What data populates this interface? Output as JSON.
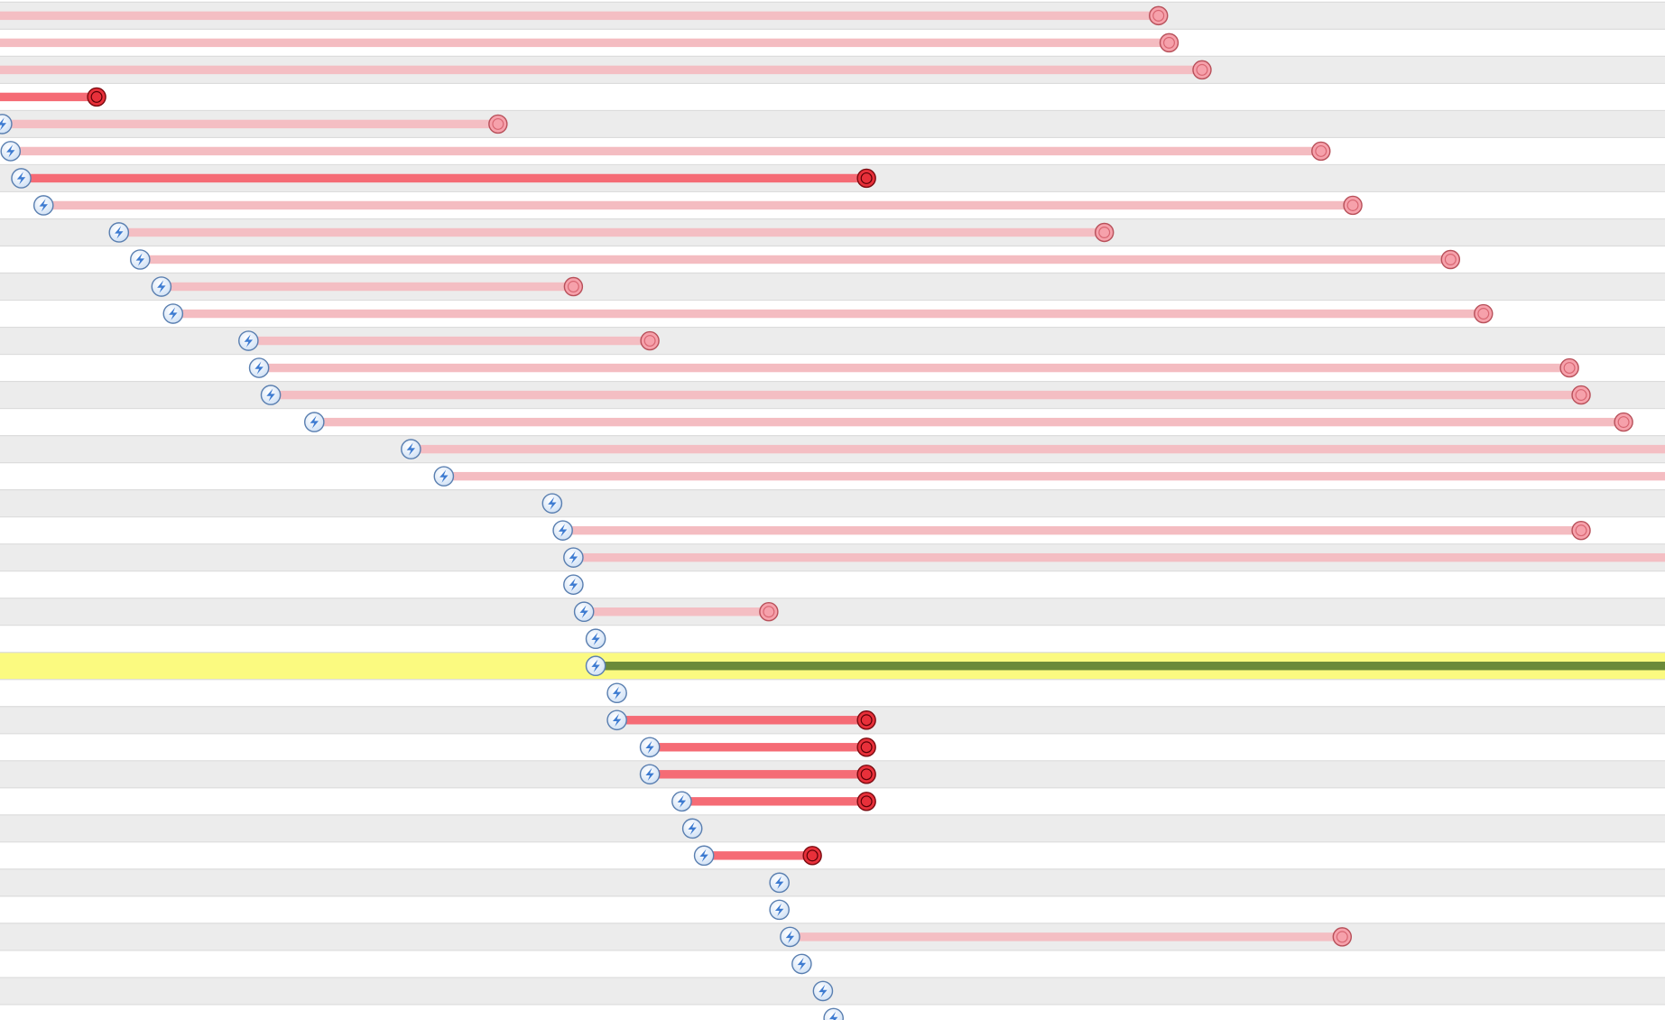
{
  "chart_data": {
    "type": "timeline",
    "xlim": [
      0,
      1568
    ],
    "rows": [
      {
        "start": null,
        "end": 1091,
        "color": "#f4bcc1"
      },
      {
        "start": null,
        "end": 1101,
        "color": "#f4bcc1"
      },
      {
        "start": null,
        "end": 1132,
        "color": "#f4bcc1"
      },
      {
        "start": null,
        "end": 91,
        "color": "#f56b75"
      },
      {
        "start": 2,
        "end": 469,
        "color": "#f4bcc1"
      },
      {
        "start": 10,
        "end": 1244,
        "color": "#f4bcc1"
      },
      {
        "start": 20,
        "end": 816,
        "color": "#f56b75"
      },
      {
        "start": 41,
        "end": 1274,
        "color": "#f4bcc1"
      },
      {
        "start": 112,
        "end": 1040,
        "color": "#f4bcc1"
      },
      {
        "start": 132,
        "end": 1366,
        "color": "#f4bcc1"
      },
      {
        "start": 152,
        "end": 540,
        "color": "#f4bcc1"
      },
      {
        "start": 163,
        "end": 1397,
        "color": "#f4bcc1"
      },
      {
        "start": 234,
        "end": 612,
        "color": "#f4bcc1"
      },
      {
        "start": 244,
        "end": 1478,
        "color": "#f4bcc1"
      },
      {
        "start": 255,
        "end": 1489,
        "color": "#f4bcc1"
      },
      {
        "start": 296,
        "end": 1529,
        "color": "#f4bcc1"
      },
      {
        "start": 387,
        "end": null,
        "color": "#f4bcc1"
      },
      {
        "start": 418,
        "end": null,
        "color": "#f4bcc1"
      },
      {
        "start": 520,
        "end": null,
        "color": null
      },
      {
        "start": 530,
        "end": 1489,
        "color": "#f4bcc1"
      },
      {
        "start": 540,
        "end": null,
        "color": "#f4bcc1"
      },
      {
        "start": 540,
        "end": null,
        "color": null
      },
      {
        "start": 550,
        "end": 724,
        "color": "#f4bcc1"
      },
      {
        "start": 561,
        "end": null,
        "color": null
      },
      {
        "start": 561,
        "end": null,
        "color": "#6a8a3a",
        "highlight": true
      },
      {
        "start": 581,
        "end": null,
        "color": null
      },
      {
        "start": 581,
        "end": 816,
        "color": "#f56b75"
      },
      {
        "start": 612,
        "end": 816,
        "color": "#f56b75"
      },
      {
        "start": 612,
        "end": 816,
        "color": "#f56b75"
      },
      {
        "start": 642,
        "end": 816,
        "color": "#f56b75"
      },
      {
        "start": 652,
        "end": null,
        "color": null
      },
      {
        "start": 663,
        "end": 765,
        "color": "#f56b75"
      },
      {
        "start": 734,
        "end": null,
        "color": null
      },
      {
        "start": 734,
        "end": null,
        "color": null
      },
      {
        "start": 744,
        "end": 1264,
        "color": "#f4bcc1"
      },
      {
        "start": 755,
        "end": null,
        "color": null
      },
      {
        "start": 775,
        "end": null,
        "color": null
      },
      {
        "start": 785,
        "end": null,
        "color": null
      }
    ]
  }
}
